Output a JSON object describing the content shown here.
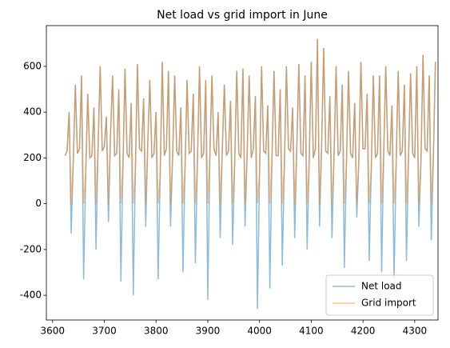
{
  "chart_data": {
    "type": "line",
    "title": "Net load vs grid import in June",
    "x": [
      3624,
      3628,
      3632,
      3636,
      3640,
      3644,
      3648,
      3652,
      3656,
      3660,
      3664,
      3668,
      3672,
      3676,
      3680,
      3684,
      3688,
      3692,
      3696,
      3700,
      3704,
      3708,
      3712,
      3716,
      3720,
      3724,
      3728,
      3732,
      3736,
      3740,
      3744,
      3748,
      3752,
      3756,
      3760,
      3764,
      3768,
      3772,
      3776,
      3780,
      3784,
      3788,
      3792,
      3796,
      3800,
      3804,
      3808,
      3812,
      3816,
      3820,
      3824,
      3828,
      3832,
      3836,
      3840,
      3844,
      3848,
      3852,
      3856,
      3860,
      3864,
      3868,
      3872,
      3876,
      3880,
      3884,
      3888,
      3892,
      3896,
      3900,
      3904,
      3908,
      3912,
      3916,
      3920,
      3924,
      3928,
      3932,
      3936,
      3940,
      3944,
      3948,
      3952,
      3956,
      3960,
      3964,
      3968,
      3972,
      3976,
      3980,
      3984,
      3988,
      3992,
      3996,
      4000,
      4004,
      4008,
      4012,
      4016,
      4020,
      4024,
      4028,
      4032,
      4036,
      4040,
      4044,
      4048,
      4052,
      4056,
      4060,
      4064,
      4068,
      4072,
      4076,
      4080,
      4084,
      4088,
      4092,
      4096,
      4100,
      4104,
      4108,
      4112,
      4116,
      4120,
      4124,
      4128,
      4132,
      4136,
      4140,
      4144,
      4148,
      4152,
      4156,
      4160,
      4164,
      4168,
      4172,
      4176,
      4180,
      4184,
      4188,
      4192,
      4196,
      4200,
      4204,
      4208,
      4212,
      4216,
      4220,
      4224,
      4228,
      4232,
      4236,
      4240,
      4244,
      4248,
      4252,
      4256,
      4260,
      4264,
      4268,
      4272,
      4276,
      4280,
      4284,
      4288,
      4292,
      4296,
      4300,
      4304,
      4308,
      4312,
      4316,
      4320,
      4324,
      4328,
      4332,
      4336,
      4340
    ],
    "series": [
      {
        "name": "Net load",
        "color": "#1f77b4",
        "values": [
          210,
          230,
          400,
          -130,
          180,
          520,
          220,
          240,
          560,
          -330,
          120,
          480,
          200,
          210,
          420,
          -200,
          250,
          600,
          230,
          250,
          380,
          -80,
          300,
          560,
          210,
          220,
          500,
          -340,
          160,
          590,
          220,
          200,
          440,
          -400,
          140,
          610,
          240,
          230,
          460,
          -100,
          260,
          540,
          200,
          220,
          400,
          -330,
          120,
          620,
          210,
          240,
          580,
          -100,
          200,
          560,
          230,
          210,
          420,
          -300,
          150,
          540,
          220,
          230,
          480,
          -260,
          180,
          600,
          200,
          220,
          540,
          -420,
          200,
          560,
          240,
          210,
          400,
          -150,
          230,
          520,
          210,
          230,
          450,
          -180,
          170,
          580,
          220,
          200,
          590,
          -100,
          210,
          560,
          200,
          240,
          470,
          -460,
          130,
          600,
          230,
          220,
          430,
          -370,
          190,
          580,
          210,
          210,
          500,
          -270,
          160,
          600,
          240,
          230,
          420,
          -150,
          240,
          610,
          220,
          210,
          560,
          -200,
          180,
          620,
          200,
          240,
          720,
          -100,
          250,
          680,
          230,
          220,
          470,
          -150,
          200,
          600,
          210,
          230,
          520,
          -280,
          170,
          580,
          220,
          200,
          440,
          -60,
          190,
          620,
          240,
          240,
          480,
          -250,
          150,
          560,
          200,
          220,
          560,
          -300,
          210,
          600,
          230,
          210,
          430,
          -330,
          160,
          580,
          210,
          230,
          520,
          -250,
          200,
          570,
          220,
          200,
          600,
          -100,
          180,
          650,
          240,
          230,
          560,
          -160,
          200,
          620
        ]
      },
      {
        "name": "Grid import",
        "color": "#ff7f0e",
        "values": [
          210,
          230,
          400,
          0,
          180,
          520,
          220,
          240,
          560,
          0,
          120,
          480,
          200,
          210,
          420,
          0,
          250,
          600,
          230,
          250,
          380,
          0,
          300,
          560,
          210,
          220,
          500,
          0,
          160,
          590,
          220,
          200,
          440,
          0,
          140,
          610,
          240,
          230,
          460,
          0,
          260,
          540,
          200,
          220,
          400,
          0,
          120,
          620,
          210,
          240,
          580,
          0,
          200,
          560,
          230,
          210,
          420,
          0,
          150,
          540,
          220,
          230,
          480,
          0,
          180,
          600,
          200,
          220,
          540,
          0,
          200,
          560,
          240,
          210,
          400,
          0,
          230,
          520,
          210,
          230,
          450,
          0,
          170,
          580,
          220,
          200,
          590,
          0,
          210,
          560,
          200,
          240,
          470,
          0,
          130,
          600,
          230,
          220,
          430,
          0,
          190,
          580,
          210,
          210,
          500,
          0,
          160,
          600,
          240,
          230,
          420,
          0,
          240,
          610,
          220,
          210,
          560,
          0,
          180,
          620,
          200,
          240,
          720,
          0,
          250,
          680,
          230,
          220,
          470,
          0,
          200,
          600,
          210,
          230,
          520,
          0,
          170,
          580,
          220,
          200,
          440,
          0,
          190,
          620,
          240,
          240,
          480,
          0,
          150,
          560,
          200,
          220,
          560,
          0,
          210,
          600,
          230,
          210,
          430,
          0,
          160,
          580,
          210,
          230,
          520,
          0,
          200,
          570,
          220,
          200,
          600,
          0,
          180,
          650,
          240,
          230,
          560,
          0,
          200,
          620
        ]
      }
    ],
    "xlim": [
      3588,
      4345
    ],
    "ylim": [
      -508,
      778
    ],
    "xticks": [
      3600,
      3700,
      3800,
      3900,
      4000,
      4100,
      4200,
      4300
    ],
    "yticks": [
      -400,
      -200,
      0,
      200,
      400,
      600
    ],
    "legend": "lower right"
  }
}
